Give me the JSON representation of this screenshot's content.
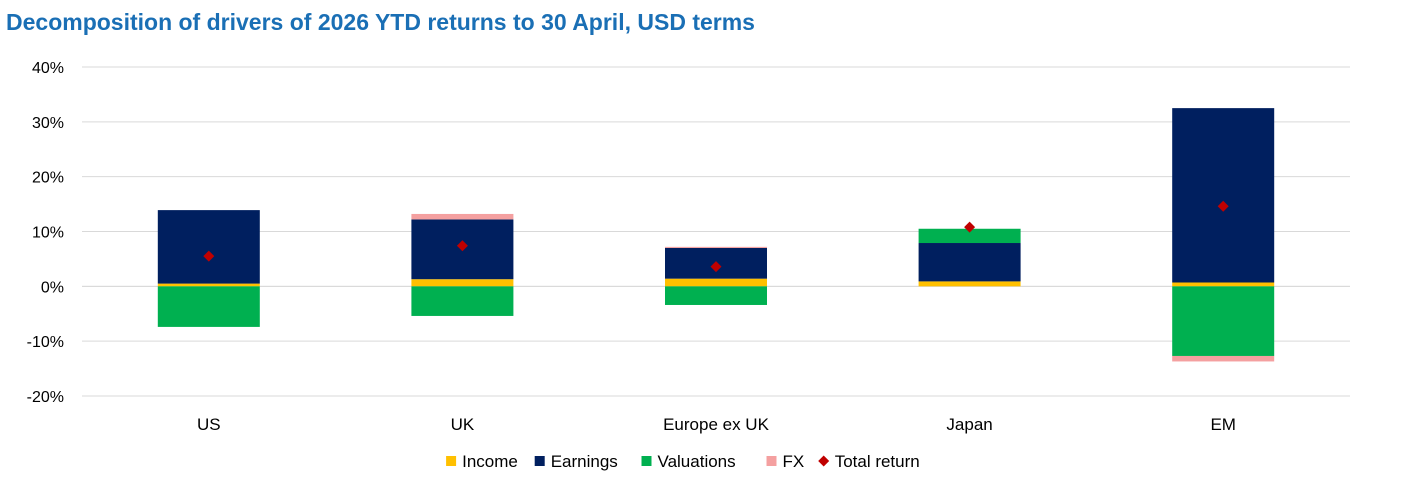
{
  "title": "Decomposition of drivers of 2026 YTD returns to 30 April, USD terms",
  "chart_data": {
    "type": "bar",
    "stacked": true,
    "title": "Decomposition of drivers of 2026 YTD returns to 30 April, USD terms",
    "categories": [
      "US",
      "UK",
      "Europe ex UK",
      "Japan",
      "EM"
    ],
    "series": [
      {
        "name": "Income",
        "type": "bar",
        "color": "#ffc000",
        "values": [
          0.5,
          1.3,
          1.4,
          0.9,
          0.7
        ]
      },
      {
        "name": "Earnings",
        "type": "bar",
        "color": "#001f5f",
        "values": [
          13.4,
          10.9,
          5.6,
          7.0,
          31.8
        ]
      },
      {
        "name": "Valuations",
        "type": "bar",
        "color": "#00b050",
        "values": [
          -7.4,
          -5.4,
          -3.4,
          2.6,
          -12.7
        ]
      },
      {
        "name": "FX",
        "type": "bar",
        "color": "#f4a0a0",
        "values": [
          0.0,
          1.0,
          0.2,
          0.0,
          -1.0
        ]
      },
      {
        "name": "Total return",
        "type": "marker",
        "color": "#c00000",
        "values": [
          5.5,
          7.4,
          3.6,
          10.8,
          14.6
        ]
      }
    ],
    "y_ticks": [
      "40%",
      "30%",
      "20%",
      "10%",
      "0%",
      "-10%",
      "-20%"
    ],
    "ylim": [
      -20,
      40
    ],
    "y_unit": "%",
    "grid": true,
    "legend_position": "bottom"
  }
}
